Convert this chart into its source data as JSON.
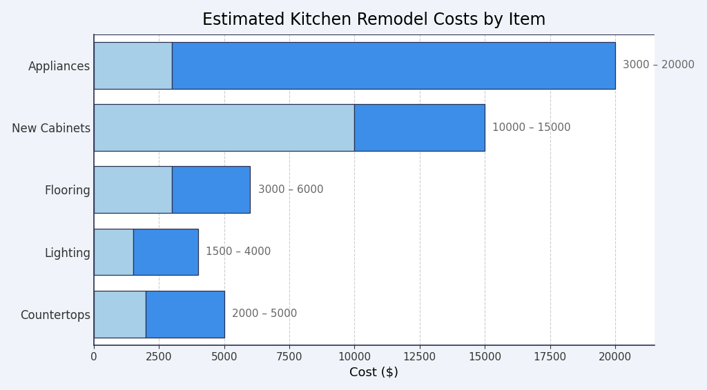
{
  "title": "Estimated Kitchen Remodel Costs by Item",
  "xlabel": "Cost ($)",
  "categories": [
    "Countertops",
    "Lighting",
    "Flooring",
    "New Cabinets",
    "Appliances"
  ],
  "min_values": [
    2000,
    1500,
    3000,
    10000,
    3000
  ],
  "max_values": [
    5000,
    4000,
    6000,
    15000,
    20000
  ],
  "labels": [
    "2000 – 5000",
    "1500 – 4000",
    "3000 – 6000",
    "10000 – 15000",
    "3000 – 20000"
  ],
  "color_light": "#a8cfe8",
  "color_dark": "#3d8ee8",
  "bar_edge_color": "#2a3050",
  "background_color": "#ffffff",
  "fig_background_color": "#f0f4fa",
  "grid_color": "#aaaaaa",
  "xlim": [
    0,
    21500
  ],
  "bar_height": 0.75,
  "title_fontsize": 17,
  "label_fontsize": 12,
  "tick_fontsize": 11,
  "annotation_fontsize": 11,
  "annotation_color": "#666666",
  "xticks": [
    0,
    2500,
    5000,
    7500,
    10000,
    12500,
    15000,
    17500,
    20000
  ]
}
